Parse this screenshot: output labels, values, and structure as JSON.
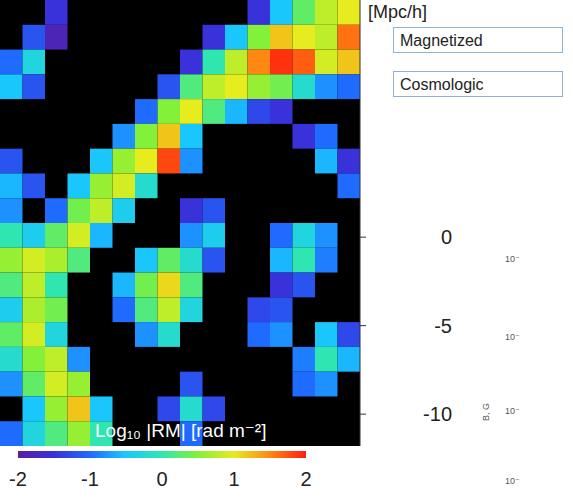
{
  "chart_data": {
    "type": "heatmap",
    "y_label": "[Mpc/h]",
    "xlim": [
      -10,
      10.8
    ],
    "ylim": [
      -11.8,
      13.4
    ],
    "yticks": [
      0,
      -5,
      -10
    ],
    "tick_labels": "y",
    "cells": {
      "x_edges": [
        -10,
        -8.7,
        -7.4,
        -6.1,
        -4.8,
        -3.5,
        -2.2,
        -0.9,
        0.4,
        1.7,
        3,
        4.3,
        5.6,
        6.9,
        8.2,
        9.5,
        10.8
      ],
      "y_edges": [
        13.4,
        12,
        10.6,
        9.2,
        7.8,
        6.4,
        5,
        3.6,
        2.2,
        0.8,
        -0.6,
        -2,
        -3.4,
        -4.8,
        -6.2,
        -7.6,
        -9,
        -10.4,
        -11.8
      ],
      "values": [
        [
          null,
          null,
          -1.5,
          null,
          null,
          null,
          null,
          null,
          null,
          null,
          null,
          -1.5,
          -0.5,
          0.3,
          0.8,
          1.0
        ],
        [
          null,
          -1.2,
          -1.8,
          null,
          null,
          null,
          null,
          null,
          null,
          -1.5,
          -0.5,
          0.5,
          1.2,
          1.0,
          0.8,
          1.6
        ],
        [
          -1.0,
          -0.3,
          null,
          null,
          null,
          null,
          null,
          null,
          -1.5,
          0,
          0.8,
          1.5,
          1.9,
          1.7,
          0.9,
          1.2
        ],
        [
          -0.5,
          -1.2,
          null,
          null,
          null,
          null,
          null,
          -1.2,
          0.2,
          0.8,
          1.0,
          0.6,
          0.4,
          -0.2,
          -0.8,
          -1.0
        ],
        [
          null,
          null,
          null,
          null,
          null,
          null,
          -1.0,
          0.5,
          1.0,
          0.2,
          -0.6,
          -1.3,
          -1.5,
          null,
          null,
          null
        ],
        [
          null,
          null,
          null,
          null,
          null,
          -0.8,
          0.5,
          1.2,
          -0.5,
          null,
          null,
          null,
          null,
          -1.5,
          -1.0,
          null
        ],
        [
          -1.2,
          null,
          null,
          null,
          -0.5,
          0.6,
          1.0,
          1.8,
          -0.8,
          null,
          null,
          null,
          null,
          null,
          -0.6,
          -1.5
        ],
        [
          -0.6,
          -1.2,
          null,
          -0.5,
          0.6,
          0.9,
          -0.2,
          null,
          null,
          null,
          null,
          null,
          null,
          null,
          null,
          -1.0
        ],
        [
          -0.8,
          null,
          -1.0,
          0.4,
          0.8,
          -0.4,
          null,
          null,
          -1.5,
          -1.2,
          null,
          null,
          null,
          null,
          null,
          null
        ],
        [
          0,
          -0.4,
          0.3,
          0.9,
          -0.6,
          null,
          null,
          null,
          -0.8,
          -0.4,
          null,
          null,
          -1.0,
          -0.3,
          -0.8,
          null
        ],
        [
          0.6,
          0.9,
          0.7,
          0.2,
          null,
          null,
          -0.5,
          0.3,
          -0.2,
          -1.2,
          null,
          null,
          -0.6,
          0,
          -0.9,
          null
        ],
        [
          0.2,
          0.8,
          0,
          null,
          null,
          -0.6,
          0.4,
          1.1,
          0.2,
          null,
          null,
          null,
          -1.5,
          -1.2,
          null,
          null
        ],
        [
          -0.4,
          0.7,
          0.4,
          null,
          null,
          -1.0,
          0.2,
          0.8,
          -0.3,
          null,
          null,
          -1.3,
          -1.2,
          null,
          null,
          null
        ],
        [
          0.3,
          0.9,
          -0.3,
          null,
          null,
          null,
          -0.8,
          -0.2,
          null,
          null,
          null,
          -1.0,
          -0.8,
          null,
          -0.5,
          -1.3
        ],
        [
          -0.2,
          0.5,
          0.8,
          -0.8,
          null,
          null,
          null,
          null,
          null,
          null,
          null,
          null,
          null,
          -0.9,
          0,
          -0.6
        ],
        [
          -0.8,
          0.3,
          0.9,
          0.6,
          null,
          null,
          null,
          null,
          -1.2,
          null,
          null,
          null,
          null,
          -1.0,
          -0.8,
          null
        ],
        [
          null,
          -0.5,
          0.6,
          1.2,
          -0.5,
          null,
          null,
          -1.3,
          -0.2,
          -1.3,
          null,
          null,
          null,
          null,
          null,
          null
        ],
        [
          -1.0,
          -0.3,
          0.2,
          0.6,
          0,
          null,
          null,
          null,
          -1.0,
          null,
          null,
          null,
          null,
          null,
          null,
          null
        ]
      ]
    },
    "colorbar": {
      "label": "Log₁₀ |RM| [rad m⁻²]",
      "range": [
        -2,
        2
      ],
      "ticks": [
        -2,
        -1,
        0,
        1,
        2
      ]
    },
    "annotations": {
      "boxes": [
        "Magnetized",
        "Cosmologic"
      ],
      "side_plot": {
        "y_label": "B, G",
        "tick_texts": [
          "10⁻",
          "10⁻",
          "10⁻",
          "10⁻"
        ]
      }
    }
  }
}
